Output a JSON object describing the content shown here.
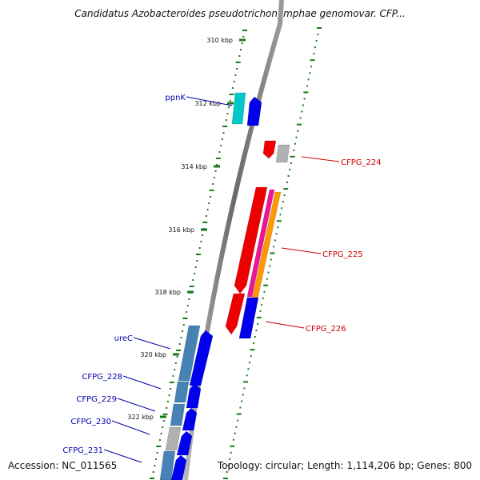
{
  "title": "Candidatus Azobacteroides pseudotrichonymphae genomovar. CFP...",
  "footer": {
    "accession": "Accession: NC_011565",
    "summary": "Topology: circular; Length: 1,114,206 bp; Genes: 800"
  },
  "colors": {
    "backbone": "#808080",
    "tick": "#1a7a1a",
    "gene_label_left": "#0000aa",
    "gene_label_right": "#cc0000"
  },
  "scale_labels": [
    "310 kbp",
    "312 kbp",
    "314 kbp",
    "316 kbp",
    "318 kbp",
    "320 kbp",
    "322 kbp"
  ],
  "genes": [
    {
      "label": "ppnK",
      "side": "left",
      "colors": [
        "#00c8c8",
        "#0000ee"
      ]
    },
    {
      "label": "CFPG_224",
      "side": "right",
      "colors": [
        "#ee0000",
        "#b0b0b0"
      ]
    },
    {
      "label": "CFPG_225",
      "side": "right",
      "colors": [
        "#ee0000",
        "#ee1493",
        "#ff9900"
      ]
    },
    {
      "label": "CFPG_226",
      "side": "right",
      "colors": [
        "#ee0000",
        "#0000ee"
      ]
    },
    {
      "label": "ureC",
      "side": "left",
      "colors": [
        "#4682b4",
        "#0000ee"
      ]
    },
    {
      "label": "CFPG_228",
      "side": "left",
      "colors": [
        "#4682b4",
        "#0000ee"
      ]
    },
    {
      "label": "CFPG_229",
      "side": "left",
      "colors": [
        "#4682b4",
        "#0000ee"
      ]
    },
    {
      "label": "CFPG_230",
      "side": "left",
      "colors": [
        "#b0b0b0",
        "#0000ee"
      ]
    },
    {
      "label": "CFPG_231",
      "side": "left",
      "colors": [
        "#4682b4",
        "#0000ee"
      ]
    }
  ]
}
